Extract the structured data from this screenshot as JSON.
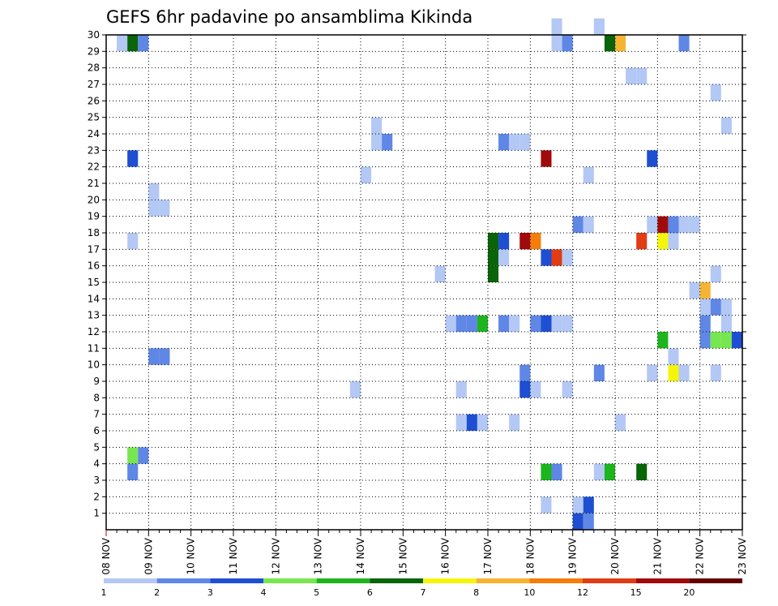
{
  "chart_data": {
    "type": "heatmap",
    "title": "GEFS 6hr padavine po ansamblima Kikinda",
    "xlabel": "",
    "ylabel": "",
    "x_tick_labels": [
      "08 NOV",
      "09 NOV",
      "10 NOV",
      "11 NOV",
      "12 NOV",
      "13 NOV",
      "14 NOV",
      "15 NOV",
      "16 NOV",
      "17 NOV",
      "18 NOV",
      "19 NOV",
      "20 NOV",
      "21 NOV",
      "22 NOV",
      "23 NOV"
    ],
    "y_tick_labels": [
      "1",
      "2",
      "3",
      "4",
      "5",
      "6",
      "7",
      "8",
      "9",
      "10",
      "11",
      "12",
      "13",
      "14",
      "15",
      "16",
      "17",
      "18",
      "19",
      "20",
      "21",
      "22",
      "23",
      "24",
      "25",
      "26",
      "27",
      "28",
      "29",
      "30"
    ],
    "x_range_days": [
      0,
      15
    ],
    "x_step_days": 0.25,
    "y_range": [
      0,
      30
    ],
    "grid": true,
    "colorbar": {
      "position": "bottom",
      "tick_labels": [
        "1",
        "2",
        "3",
        "4",
        "5",
        "6",
        "7",
        "8",
        "10",
        "12",
        "15",
        "20"
      ],
      "colors": [
        "#b4c8f5",
        "#5f87e6",
        "#1e4fd2",
        "#78e650",
        "#1eb41e",
        "#0a640a",
        "#f5f50a",
        "#f5b432",
        "#f57d0a",
        "#e13c14",
        "#a00a0a",
        "#640000"
      ]
    },
    "cells": [
      {
        "d": 0.25,
        "m": 29,
        "c": 0
      },
      {
        "d": 0.5,
        "m": 29,
        "c": 5
      },
      {
        "d": 0.75,
        "m": 29,
        "c": 1
      },
      {
        "d": 0.5,
        "m": 22,
        "c": 2
      },
      {
        "d": 0.5,
        "m": 17,
        "c": 0
      },
      {
        "d": 0.5,
        "m": 4,
        "c": 3
      },
      {
        "d": 0.75,
        "m": 4,
        "c": 1
      },
      {
        "d": 0.5,
        "m": 3,
        "c": 1
      },
      {
        "d": 1.0,
        "m": 20,
        "c": 0
      },
      {
        "d": 1.0,
        "m": 19,
        "c": 0
      },
      {
        "d": 1.25,
        "m": 19,
        "c": 0
      },
      {
        "d": 1.0,
        "m": 10,
        "c": 1
      },
      {
        "d": 1.25,
        "m": 10,
        "c": 1
      },
      {
        "d": 6.0,
        "m": 21,
        "c": 0
      },
      {
        "d": 6.25,
        "m": 24,
        "c": 0
      },
      {
        "d": 6.25,
        "m": 23,
        "c": 0
      },
      {
        "d": 6.5,
        "m": 23,
        "c": 1
      },
      {
        "d": 5.75,
        "m": 8,
        "c": 0
      },
      {
        "d": 7.75,
        "m": 15,
        "c": 0
      },
      {
        "d": 8.0,
        "m": 12,
        "c": 0
      },
      {
        "d": 8.25,
        "m": 12,
        "c": 1
      },
      {
        "d": 8.5,
        "m": 12,
        "c": 1
      },
      {
        "d": 8.75,
        "m": 12,
        "c": 4
      },
      {
        "d": 8.25,
        "m": 8,
        "c": 0
      },
      {
        "d": 8.25,
        "m": 6,
        "c": 0
      },
      {
        "d": 8.5,
        "m": 6,
        "c": 2
      },
      {
        "d": 8.75,
        "m": 6,
        "c": 0
      },
      {
        "d": 9.0,
        "m": 17,
        "c": 5
      },
      {
        "d": 9.25,
        "m": 17,
        "c": 2
      },
      {
        "d": 9.0,
        "m": 16,
        "c": 5
      },
      {
        "d": 9.25,
        "m": 16,
        "c": 0
      },
      {
        "d": 9.0,
        "m": 15,
        "c": 5
      },
      {
        "d": 9.25,
        "m": 12,
        "c": 1
      },
      {
        "d": 9.5,
        "m": 12,
        "c": 0
      },
      {
        "d": 9.25,
        "m": 23,
        "c": 1
      },
      {
        "d": 9.5,
        "m": 23,
        "c": 0
      },
      {
        "d": 9.75,
        "m": 23,
        "c": 0
      },
      {
        "d": 9.5,
        "m": 6,
        "c": 0
      },
      {
        "d": 9.75,
        "m": 17,
        "c": 10
      },
      {
        "d": 10.0,
        "m": 17,
        "c": 8
      },
      {
        "d": 9.75,
        "m": 9,
        "c": 1
      },
      {
        "d": 9.75,
        "m": 8,
        "c": 2
      },
      {
        "d": 10.0,
        "m": 8,
        "c": 0
      },
      {
        "d": 10.0,
        "m": 12,
        "c": 1
      },
      {
        "d": 10.25,
        "m": 12,
        "c": 2
      },
      {
        "d": 10.5,
        "m": 12,
        "c": 0
      },
      {
        "d": 10.75,
        "m": 12,
        "c": 0
      },
      {
        "d": 10.25,
        "m": 16,
        "c": 2
      },
      {
        "d": 10.5,
        "m": 16,
        "c": 9
      },
      {
        "d": 10.75,
        "m": 16,
        "c": 0
      },
      {
        "d": 10.25,
        "m": 22,
        "c": 10
      },
      {
        "d": 10.25,
        "m": 3,
        "c": 4
      },
      {
        "d": 10.5,
        "m": 3,
        "c": 1
      },
      {
        "d": 10.25,
        "m": 1,
        "c": 0
      },
      {
        "d": 10.5,
        "m": 30,
        "c": 0
      },
      {
        "d": 10.5,
        "m": 29,
        "c": 0
      },
      {
        "d": 10.75,
        "m": 29,
        "c": 1
      },
      {
        "d": 10.75,
        "m": 8,
        "c": 0
      },
      {
        "d": 11.0,
        "m": 18,
        "c": 1
      },
      {
        "d": 11.25,
        "m": 18,
        "c": 0
      },
      {
        "d": 11.0,
        "m": 1,
        "c": 0
      },
      {
        "d": 11.25,
        "m": 1,
        "c": 2
      },
      {
        "d": 11.0,
        "m": 0,
        "c": 2
      },
      {
        "d": 11.25,
        "m": 0,
        "c": 1
      },
      {
        "d": 11.25,
        "m": 21,
        "c": 0
      },
      {
        "d": 11.5,
        "m": 30,
        "c": 0
      },
      {
        "d": 11.5,
        "m": 9,
        "c": 1
      },
      {
        "d": 11.5,
        "m": 3,
        "c": 0
      },
      {
        "d": 11.75,
        "m": 3,
        "c": 4
      },
      {
        "d": 11.75,
        "m": 29,
        "c": 5
      },
      {
        "d": 12.0,
        "m": 29,
        "c": 7
      },
      {
        "d": 12.0,
        "m": 6,
        "c": 0
      },
      {
        "d": 12.25,
        "m": 27,
        "c": 0
      },
      {
        "d": 12.5,
        "m": 27,
        "c": 0
      },
      {
        "d": 12.5,
        "m": 17,
        "c": 9
      },
      {
        "d": 12.5,
        "m": 3,
        "c": 5
      },
      {
        "d": 12.75,
        "m": 22,
        "c": 2
      },
      {
        "d": 12.75,
        "m": 18,
        "c": 0
      },
      {
        "d": 13.0,
        "m": 18,
        "c": 10
      },
      {
        "d": 13.25,
        "m": 18,
        "c": 1
      },
      {
        "d": 13.5,
        "m": 18,
        "c": 0
      },
      {
        "d": 13.75,
        "m": 18,
        "c": 0
      },
      {
        "d": 13.0,
        "m": 17,
        "c": 6
      },
      {
        "d": 13.25,
        "m": 17,
        "c": 0
      },
      {
        "d": 13.0,
        "m": 11,
        "c": 4
      },
      {
        "d": 12.75,
        "m": 9,
        "c": 0
      },
      {
        "d": 13.25,
        "m": 9,
        "c": 6
      },
      {
        "d": 13.5,
        "m": 9,
        "c": 0
      },
      {
        "d": 13.25,
        "m": 10,
        "c": 0
      },
      {
        "d": 13.5,
        "m": 29,
        "c": 1
      },
      {
        "d": 13.75,
        "m": 14,
        "c": 0
      },
      {
        "d": 14.0,
        "m": 14,
        "c": 7
      },
      {
        "d": 14.0,
        "m": 12,
        "c": 1
      },
      {
        "d": 14.0,
        "m": 13,
        "c": 0
      },
      {
        "d": 14.25,
        "m": 13,
        "c": 1
      },
      {
        "d": 14.5,
        "m": 13,
        "c": 0
      },
      {
        "d": 14.5,
        "m": 12,
        "c": 0
      },
      {
        "d": 14.0,
        "m": 11,
        "c": 1
      },
      {
        "d": 14.25,
        "m": 11,
        "c": 3
      },
      {
        "d": 14.5,
        "m": 11,
        "c": 3
      },
      {
        "d": 14.75,
        "m": 11,
        "c": 2
      },
      {
        "d": 14.25,
        "m": 15,
        "c": 0
      },
      {
        "d": 14.25,
        "m": 9,
        "c": 0
      },
      {
        "d": 14.25,
        "m": 26,
        "c": 0
      },
      {
        "d": 14.5,
        "m": 24,
        "c": 0
      }
    ]
  }
}
